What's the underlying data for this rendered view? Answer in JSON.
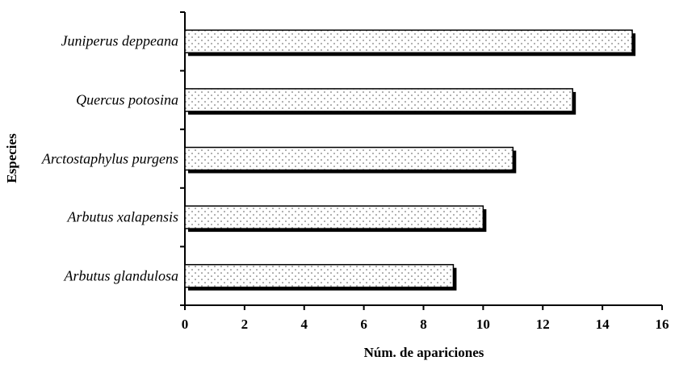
{
  "chart_data": {
    "type": "barh",
    "x_label": "Núm. de apariciones",
    "y_label": "Especies",
    "categories": [
      "Juniperus deppeana",
      "Quercus potosina",
      "Arctostaphylus purgens",
      "Arbutus xalapensis",
      "Arbutus glandulosa"
    ],
    "values": [
      15,
      13,
      11,
      10,
      9
    ],
    "xlim": [
      0,
      16
    ],
    "xticks": [
      0,
      2,
      4,
      6,
      8,
      10,
      12,
      14,
      16
    ],
    "color": "#ffffff"
  }
}
